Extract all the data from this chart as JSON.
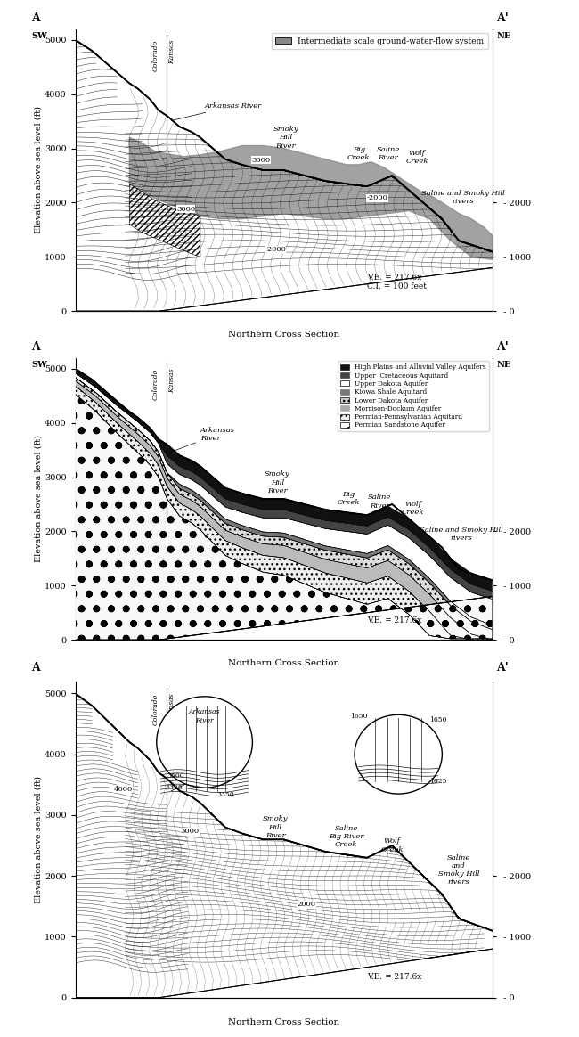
{
  "bg_color": "#ffffff",
  "line_color": "#000000",
  "gray_fill": "#888888",
  "terrain_x": [
    0.0,
    0.02,
    0.04,
    0.07,
    0.1,
    0.13,
    0.15,
    0.18,
    0.2,
    0.22,
    0.25,
    0.28,
    0.3,
    0.33,
    0.36,
    0.4,
    0.45,
    0.5,
    0.55,
    0.6,
    0.65,
    0.7,
    0.73,
    0.76,
    0.79,
    0.82,
    0.85,
    0.88,
    0.92,
    0.96,
    1.0
  ],
  "terrain_y": [
    5000,
    4900,
    4800,
    4600,
    4400,
    4200,
    4100,
    3900,
    3700,
    3600,
    3400,
    3300,
    3200,
    3000,
    2800,
    2700,
    2600,
    2600,
    2500,
    2400,
    2350,
    2300,
    2400,
    2500,
    2300,
    2100,
    1900,
    1700,
    1300,
    1200,
    1100
  ],
  "bottom_x": [
    0.0,
    0.1,
    0.2,
    0.3,
    0.4,
    0.5,
    0.55,
    0.6,
    0.7,
    0.8,
    0.9,
    1.0
  ],
  "bottom_y": [
    0,
    0,
    0,
    100,
    200,
    300,
    350,
    400,
    500,
    600,
    700,
    800
  ],
  "panel1": {
    "corner_tl": [
      "A",
      "SW"
    ],
    "corner_tr": [
      "A'",
      "NE"
    ],
    "ylabel": "Elevation above sea level (ft)",
    "xlabel": "Northern Cross Section",
    "ve_ci": "V.E. = 217.6x\nC.I. = 100 feet",
    "yticks": [
      0,
      1000,
      2000,
      3000,
      4000,
      5000
    ],
    "legend_label": "Intermediate scale ground-water-flow system",
    "legend_color": "#888888",
    "state_labels": [
      "Colorado",
      "Kansas"
    ]
  },
  "panel2": {
    "corner_tl": [
      "A",
      "SW"
    ],
    "corner_tr": [
      "A'",
      "NE"
    ],
    "ylabel": "Elevation above sea level (ft)",
    "xlabel": "Northern Cross Section",
    "ve": "V.E. = 217.6x",
    "yticks": [
      0,
      1000,
      2000,
      3000,
      4000,
      5000
    ],
    "state_labels": [
      "Colorado",
      "Kansas"
    ],
    "legend_items": [
      {
        "label": "High Plains and Alluvial Valley Aquifers",
        "facecolor": "#111111",
        "hatch": "",
        "edgecolor": "#111111"
      },
      {
        "label": "Upper  Cretaceous Aquitard",
        "facecolor": "#444444",
        "hatch": "",
        "edgecolor": "#444444"
      },
      {
        "label": "Upper Dakota Aquifer",
        "facecolor": "#ffffff",
        "hatch": "",
        "edgecolor": "#000000"
      },
      {
        "label": "Kiowa Shale Aquitard",
        "facecolor": "#777777",
        "hatch": "",
        "edgecolor": "#777777"
      },
      {
        "label": "Lower Dakota Aquifer",
        "facecolor": "#cccccc",
        "hatch": "...",
        "edgecolor": "#000000"
      },
      {
        "label": "Morrison-Dockum Aquifer",
        "facecolor": "#aaaaaa",
        "hatch": "",
        "edgecolor": "#aaaaaa"
      },
      {
        "label": "Permian-Pennsylvanian Aquitard",
        "facecolor": "#eeeeee",
        "hatch": "...",
        "edgecolor": "#000000"
      },
      {
        "label": "Permian Sandstone Aquifer",
        "facecolor": "#ffffff",
        "hatch": "o.",
        "edgecolor": "#000000"
      }
    ]
  },
  "panel3": {
    "corner_tl": "A",
    "corner_tr": "A'",
    "ylabel": "Elevation above sea level (ft)",
    "xlabel": "Northern Cross Section",
    "ve": "V.E. = 217.6x",
    "yticks": [
      0,
      1000,
      2000,
      3000,
      4000,
      5000
    ],
    "state_labels": [
      "Colorado",
      "Kansas"
    ]
  }
}
